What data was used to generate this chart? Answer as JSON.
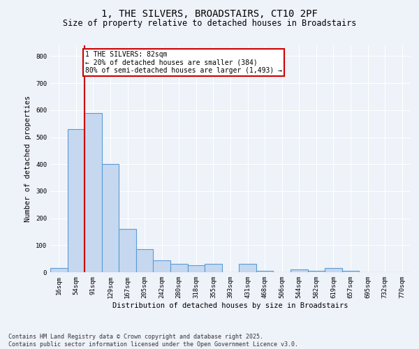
{
  "title_line1": "1, THE SILVERS, BROADSTAIRS, CT10 2PF",
  "title_line2": "Size of property relative to detached houses in Broadstairs",
  "xlabel": "Distribution of detached houses by size in Broadstairs",
  "ylabel": "Number of detached properties",
  "bar_labels": [
    "16sqm",
    "54sqm",
    "91sqm",
    "129sqm",
    "167sqm",
    "205sqm",
    "242sqm",
    "280sqm",
    "318sqm",
    "355sqm",
    "393sqm",
    "431sqm",
    "468sqm",
    "506sqm",
    "544sqm",
    "582sqm",
    "619sqm",
    "657sqm",
    "695sqm",
    "732sqm",
    "770sqm"
  ],
  "bar_values": [
    15,
    530,
    590,
    400,
    160,
    85,
    45,
    30,
    25,
    30,
    0,
    30,
    5,
    0,
    10,
    5,
    15,
    5,
    0,
    0,
    0
  ],
  "bar_color": "#c5d8f0",
  "bar_edgecolor": "#5b9bd5",
  "red_line_x": 1.5,
  "red_line_label": "1 THE SILVERS: 82sqm",
  "annotation_line2": "← 20% of detached houses are smaller (384)",
  "annotation_line3": "80% of semi-detached houses are larger (1,493) →",
  "annotation_box_color": "#ffffff",
  "annotation_box_edgecolor": "#cc0000",
  "ylim": [
    0,
    840
  ],
  "yticks": [
    0,
    100,
    200,
    300,
    400,
    500,
    600,
    700,
    800
  ],
  "background_color": "#eef2f9",
  "grid_color": "#ffffff",
  "footer_line1": "Contains HM Land Registry data © Crown copyright and database right 2025.",
  "footer_line2": "Contains public sector information licensed under the Open Government Licence v3.0.",
  "title_fontsize": 10,
  "subtitle_fontsize": 8.5,
  "axis_label_fontsize": 7.5,
  "tick_fontsize": 6.5,
  "annotation_fontsize": 7,
  "footer_fontsize": 6
}
